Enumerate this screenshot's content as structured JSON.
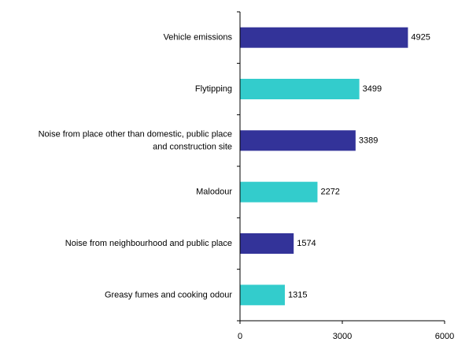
{
  "chart_data": {
    "type": "bar",
    "orientation": "horizontal",
    "title": "",
    "xlabel": "",
    "ylabel": "",
    "categories": [
      [
        "Vehicle emissions"
      ],
      [
        "Flytipping"
      ],
      [
        "Noise from place other than domestic, public place",
        "and construction site"
      ],
      [
        "Malodour"
      ],
      [
        "Noise from neighbourhood and public place"
      ],
      [
        "Greasy fumes and cooking odour"
      ]
    ],
    "values": [
      4925,
      3499,
      3389,
      2272,
      1574,
      1315
    ],
    "value_labels": [
      "4925",
      "3499",
      "3389",
      "2272",
      "1574",
      "1315"
    ],
    "xlim": [
      0,
      6000
    ],
    "xticks": [
      0,
      3000,
      6000
    ],
    "xtick_labels": [
      "0",
      "3000",
      "6000"
    ],
    "bar_colors": [
      "#333399",
      "#33CCCC",
      "#333399",
      "#33CCCC",
      "#333399",
      "#33CCCC"
    ],
    "grid": false,
    "legend": "none"
  }
}
